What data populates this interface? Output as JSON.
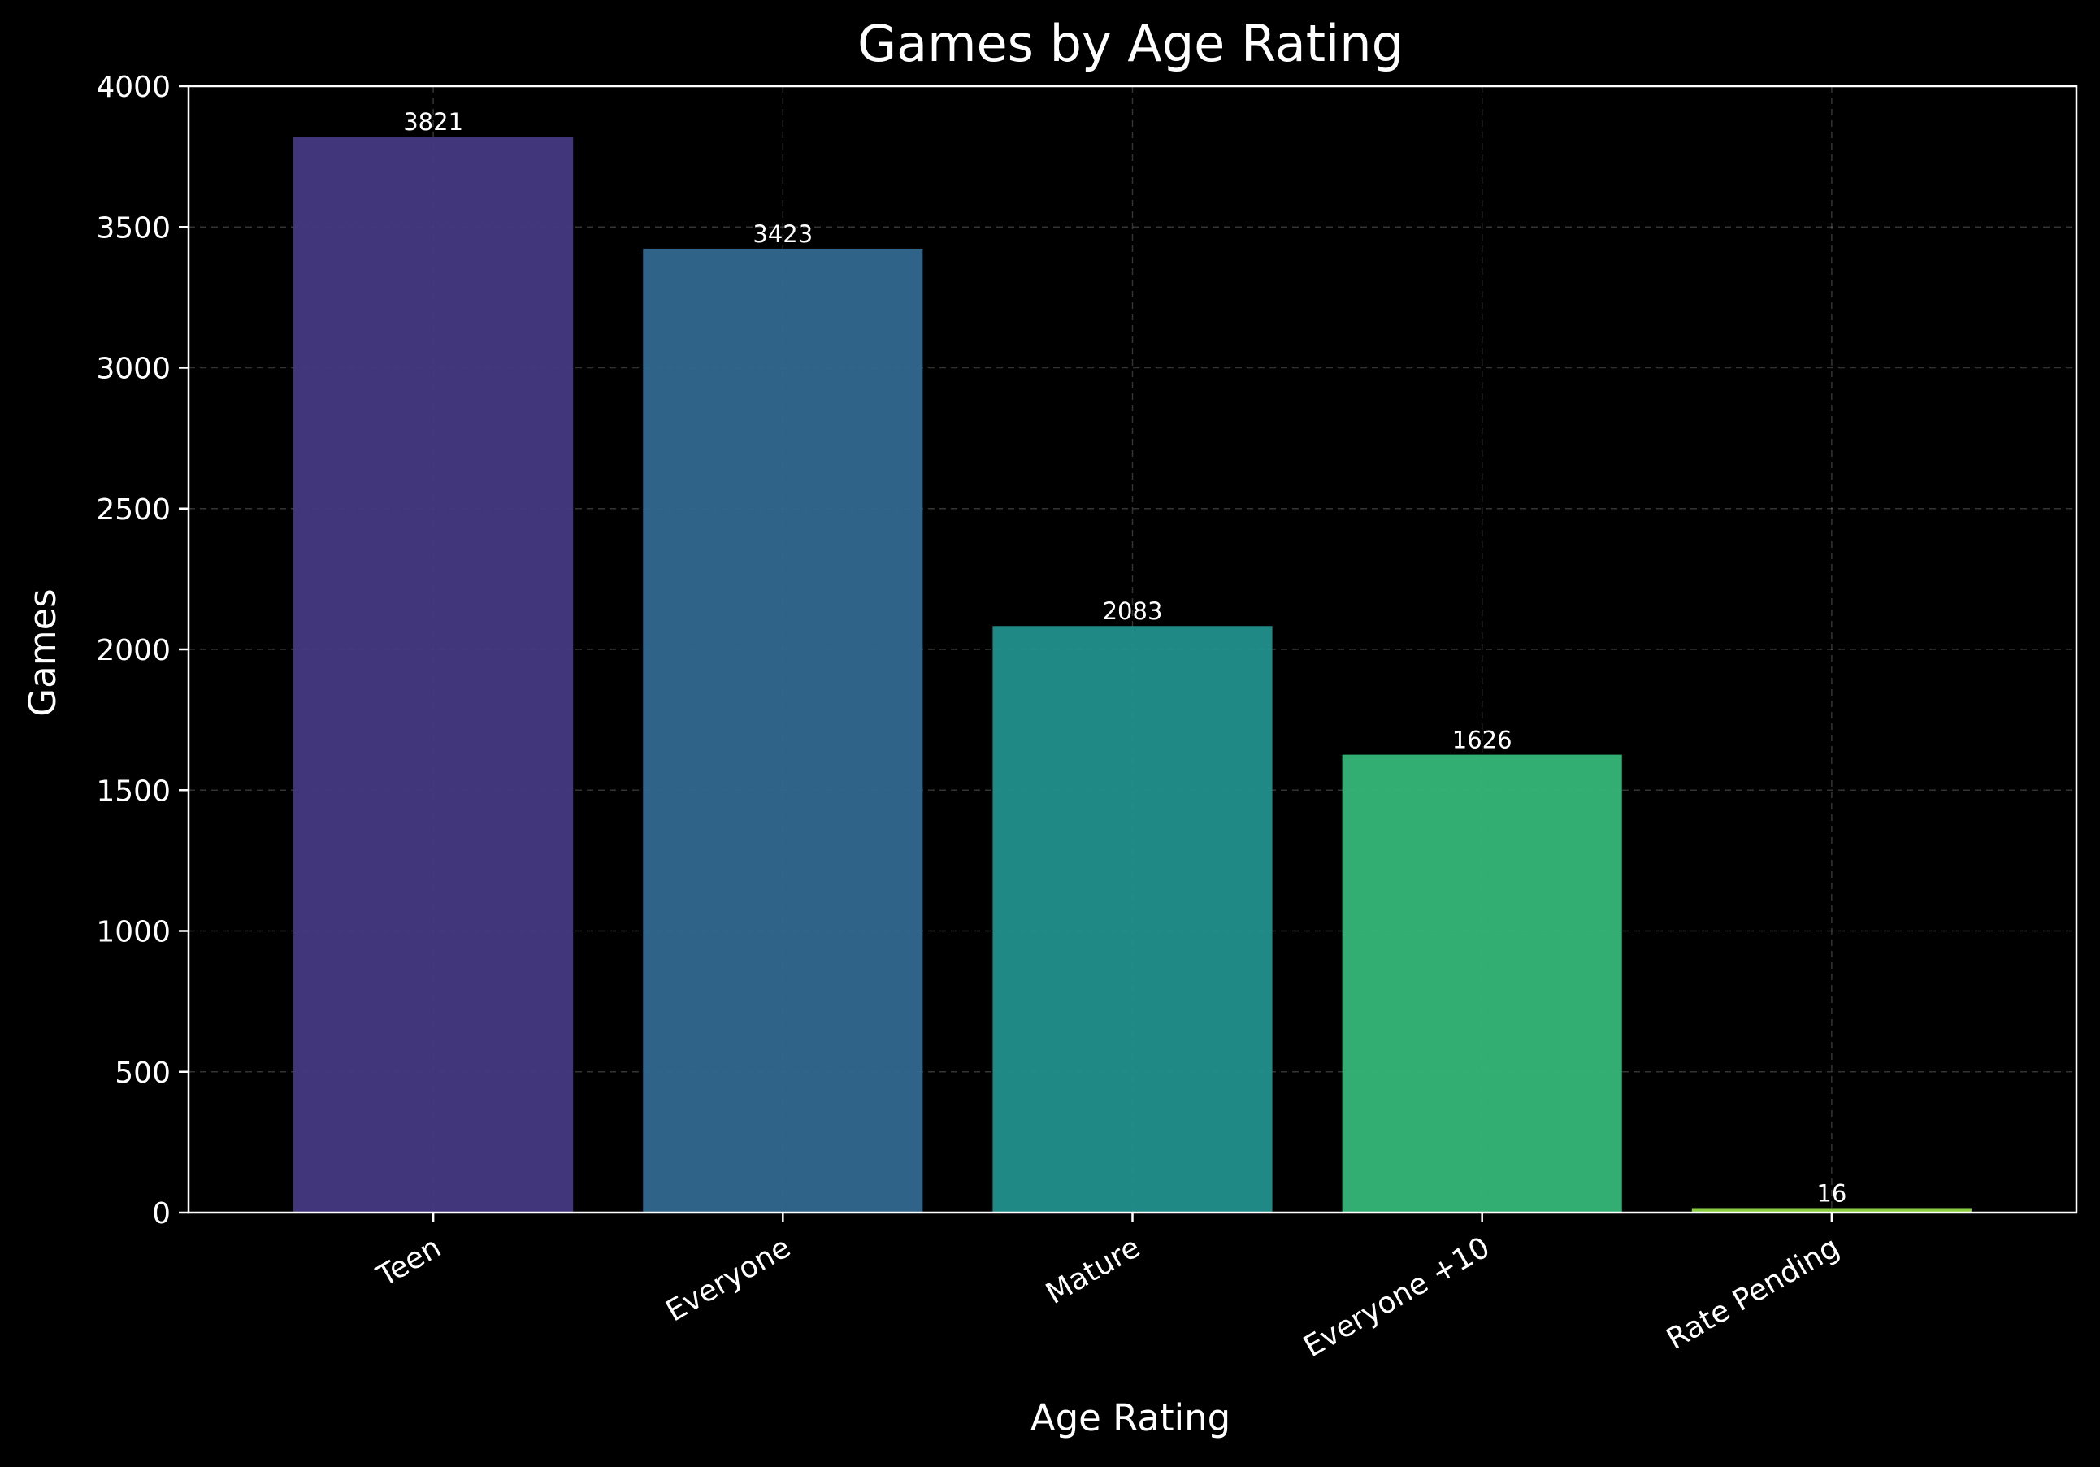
{
  "chart_data": {
    "type": "bar",
    "title": "Games by Age Rating",
    "xlabel": "Age Rating",
    "ylabel": "Games",
    "categories": [
      "Teen",
      "Everyone",
      "Mature",
      "Everyone +10",
      "Rate Pending"
    ],
    "values": [
      3821,
      3423,
      2083,
      1626,
      16
    ],
    "data_labels": [
      "3821",
      "3423",
      "2083",
      "1626",
      "16"
    ],
    "ylim": [
      0,
      4000
    ],
    "yticks": [
      0,
      500,
      1000,
      1500,
      2000,
      2500,
      3000,
      3500,
      4000
    ],
    "ytick_labels": [
      "0",
      "500",
      "1000",
      "1500",
      "2000",
      "2500",
      "3000",
      "3500",
      "4000"
    ],
    "grid": true,
    "bar_colors": [
      "#443983",
      "#31688e",
      "#21918c",
      "#35b779",
      "#90d743"
    ],
    "background_color": "#000000",
    "axis_color": "#ffffff"
  }
}
